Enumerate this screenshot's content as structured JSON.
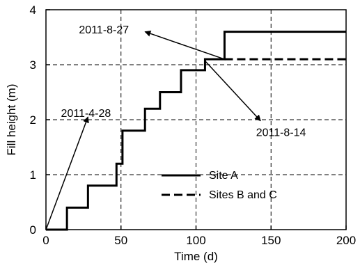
{
  "chart_data": {
    "type": "line",
    "title": "",
    "xlabel": "Time (d)",
    "ylabel": "Fill height (m)",
    "xlim": [
      0,
      200
    ],
    "ylim": [
      0,
      4
    ],
    "x_ticks": [
      0,
      50,
      100,
      150,
      200
    ],
    "y_ticks": [
      0,
      1,
      2,
      3,
      4
    ],
    "x_tick_labels": [
      "0",
      "50",
      "100",
      "150",
      "200"
    ],
    "y_tick_labels": [
      "0",
      "1",
      "2",
      "3",
      "4"
    ],
    "grid": true,
    "legend_position": "lower-right",
    "series": [
      {
        "name": "Site A",
        "line_style": "solid",
        "color": "#000000",
        "x": [
          0,
          14,
          14,
          28,
          28,
          47,
          47,
          51,
          51,
          66,
          66,
          76,
          76,
          90,
          90,
          106,
          106,
          119,
          119,
          200
        ],
        "y": [
          0,
          0,
          0.4,
          0.4,
          0.8,
          0.8,
          1.2,
          1.2,
          1.8,
          1.8,
          2.2,
          2.2,
          2.5,
          2.5,
          2.9,
          2.9,
          3.1,
          3.1,
          3.6,
          3.6
        ]
      },
      {
        "name": "Sites B and C",
        "line_style": "dashed",
        "color": "#000000",
        "x": [
          119,
          200
        ],
        "y": [
          3.1,
          3.1
        ]
      }
    ],
    "annotations": [
      {
        "text": "2011-8-27",
        "text_x": 22,
        "text_y": 3.57,
        "arrow_from": [
          119,
          3.1
        ],
        "arrow_to": [
          66,
          3.6
        ]
      },
      {
        "text": "2011-4-28",
        "text_x": 10,
        "text_y": 2.05,
        "arrow_from": [
          0,
          0
        ],
        "arrow_to": [
          28,
          2.05
        ]
      },
      {
        "text": "2011-8-14",
        "text_x": 140,
        "text_y": 1.7,
        "arrow_from": [
          106,
          3.07
        ],
        "arrow_to": [
          143,
          1.98
        ]
      }
    ]
  }
}
